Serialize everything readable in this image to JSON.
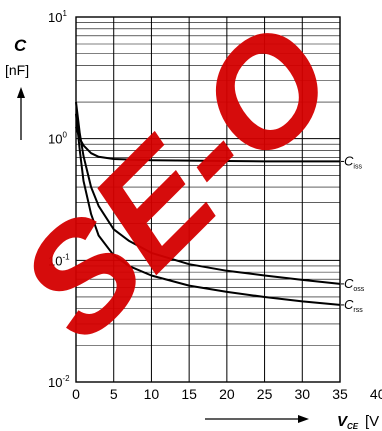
{
  "watermark": {
    "text": "SE-O",
    "color": "#d40000"
  },
  "chart_data": {
    "type": "line",
    "ylabel_symbol": "C",
    "ylabel_unit": "[nF]",
    "xlabel_symbol": "V",
    "xlabel_subscript": "CE",
    "xlabel_unit": "[V",
    "yscale": "log",
    "ylim": [
      0.01,
      10
    ],
    "xlim": [
      0,
      40
    ],
    "y_tick_labels": [
      {
        "value": 10,
        "base": "10",
        "exp": "1"
      },
      {
        "value": 1,
        "base": "10",
        "exp": "0"
      },
      {
        "value": 0.1,
        "base": "10",
        "exp": "-1"
      },
      {
        "value": 0.01,
        "base": "10",
        "exp": "-2"
      }
    ],
    "x_ticks": [
      0,
      5,
      10,
      15,
      20,
      25,
      30,
      35,
      40
    ],
    "x_tick_labels": [
      "0",
      "5",
      "10",
      "15",
      "20",
      "25",
      "30",
      "35",
      "40"
    ],
    "grid": true,
    "series": [
      {
        "name": "C",
        "subscript": "iss",
        "x": [
          0,
          0.5,
          1,
          2,
          3,
          5,
          8,
          10,
          15,
          20,
          25,
          30,
          35
        ],
        "y": [
          1.25,
          1.0,
          0.88,
          0.76,
          0.71,
          0.68,
          0.67,
          0.665,
          0.66,
          0.655,
          0.65,
          0.65,
          0.65
        ]
      },
      {
        "name": "C",
        "subscript": "oss",
        "x": [
          0,
          0.5,
          1,
          2,
          3,
          5,
          7,
          10,
          15,
          20,
          25,
          30,
          35
        ],
        "y": [
          2.0,
          1.1,
          0.72,
          0.4,
          0.28,
          0.18,
          0.145,
          0.115,
          0.093,
          0.082,
          0.075,
          0.069,
          0.064
        ]
      },
      {
        "name": "C",
        "subscript": "rss",
        "x": [
          0,
          0.5,
          1,
          2,
          3,
          5,
          7,
          10,
          15,
          20,
          25,
          30,
          35
        ],
        "y": [
          1.6,
          0.8,
          0.45,
          0.24,
          0.16,
          0.11,
          0.09,
          0.075,
          0.062,
          0.055,
          0.05,
          0.046,
          0.043
        ]
      }
    ]
  }
}
